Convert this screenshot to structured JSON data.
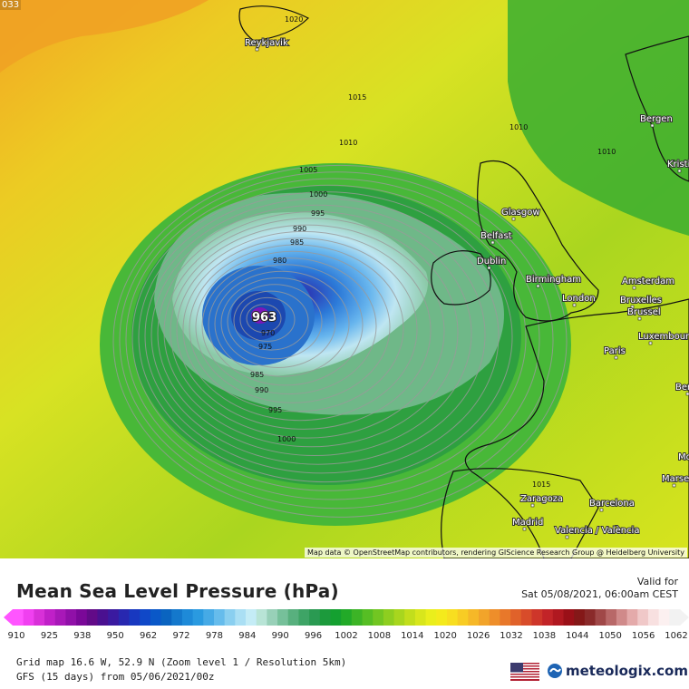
{
  "map": {
    "corner_value": "033",
    "attribution": "Map data © OpenStreetMap contributors, rendering GIScience Research Group @ Heidelberg University",
    "low_center": {
      "value": "963"
    },
    "isobar_labels": [
      "1020",
      "1015",
      "1010",
      "1010",
      "1010",
      "1005",
      "1000",
      "995",
      "990",
      "985",
      "980",
      "975",
      "970",
      "985",
      "990",
      "995",
      "1000",
      "1015"
    ],
    "cities": [
      "Reykjavik",
      "Bergen",
      "Kristiansand",
      "Glasgow",
      "Belfast",
      "Dublin",
      "Birmingham",
      "London",
      "Amsterdam",
      "Bruxelles",
      "Brussel",
      "Luxembourg",
      "Paris",
      "Berlin",
      "Zaragoza",
      "Barcelona",
      "Madrid",
      "Valencia / València",
      "Montpellier",
      "Marseille"
    ]
  },
  "header": {
    "title": "Mean Sea Level Pressure (hPa)",
    "valid_label": "Valid for",
    "valid_value": "Sat 05/08/2021, 06:00am CEST"
  },
  "legend": {
    "ticks": [
      "910",
      "925",
      "938",
      "950",
      "962",
      "972",
      "978",
      "984",
      "990",
      "996",
      "1002",
      "1008",
      "1014",
      "1020",
      "1026",
      "1032",
      "1038",
      "1044",
      "1050",
      "1056",
      "1062"
    ],
    "colors": [
      "#ff55ff",
      "#f040f0",
      "#d830d8",
      "#c020c8",
      "#a818b8",
      "#9010a8",
      "#7a0898",
      "#620a88",
      "#4a1090",
      "#3a1aa0",
      "#2828b0",
      "#1838c0",
      "#1048c8",
      "#0a58c8",
      "#0a64c0",
      "#1478cc",
      "#1e8ad8",
      "#2a9ae0",
      "#46aae6",
      "#66bcec",
      "#8acff0",
      "#aadff4",
      "#c4ecf6",
      "#b8e4d6",
      "#98d0b8",
      "#76c09a",
      "#58b07e",
      "#3ea466",
      "#2a9a52",
      "#1c9a3c",
      "#14a030",
      "#22aa28",
      "#3cb426",
      "#56be24",
      "#72c622",
      "#8ece20",
      "#a8d61e",
      "#c2de1c",
      "#d8e61c",
      "#eaee1c",
      "#f4ea1c",
      "#f8de20",
      "#f8cc24",
      "#f6b828",
      "#f2a42a",
      "#ee8e2a",
      "#e8782a",
      "#e0622a",
      "#d84c2a",
      "#ce362a",
      "#c22428",
      "#b01820",
      "#9a1018",
      "#841818",
      "#8a2a2a",
      "#a04848",
      "#b86868",
      "#d08a8a",
      "#e4aaaa",
      "#f0c8c8",
      "#f8e0e0",
      "#fcf0f0",
      "#f2f2f2"
    ]
  },
  "footer": {
    "grid_info": "Grid map 16.6 W, 52.9 N (Zoom level 1 / Resolution 5km)",
    "model_info": "GFS (15 days) from 05/06/2021/00z",
    "brand": "meteologix.com"
  }
}
